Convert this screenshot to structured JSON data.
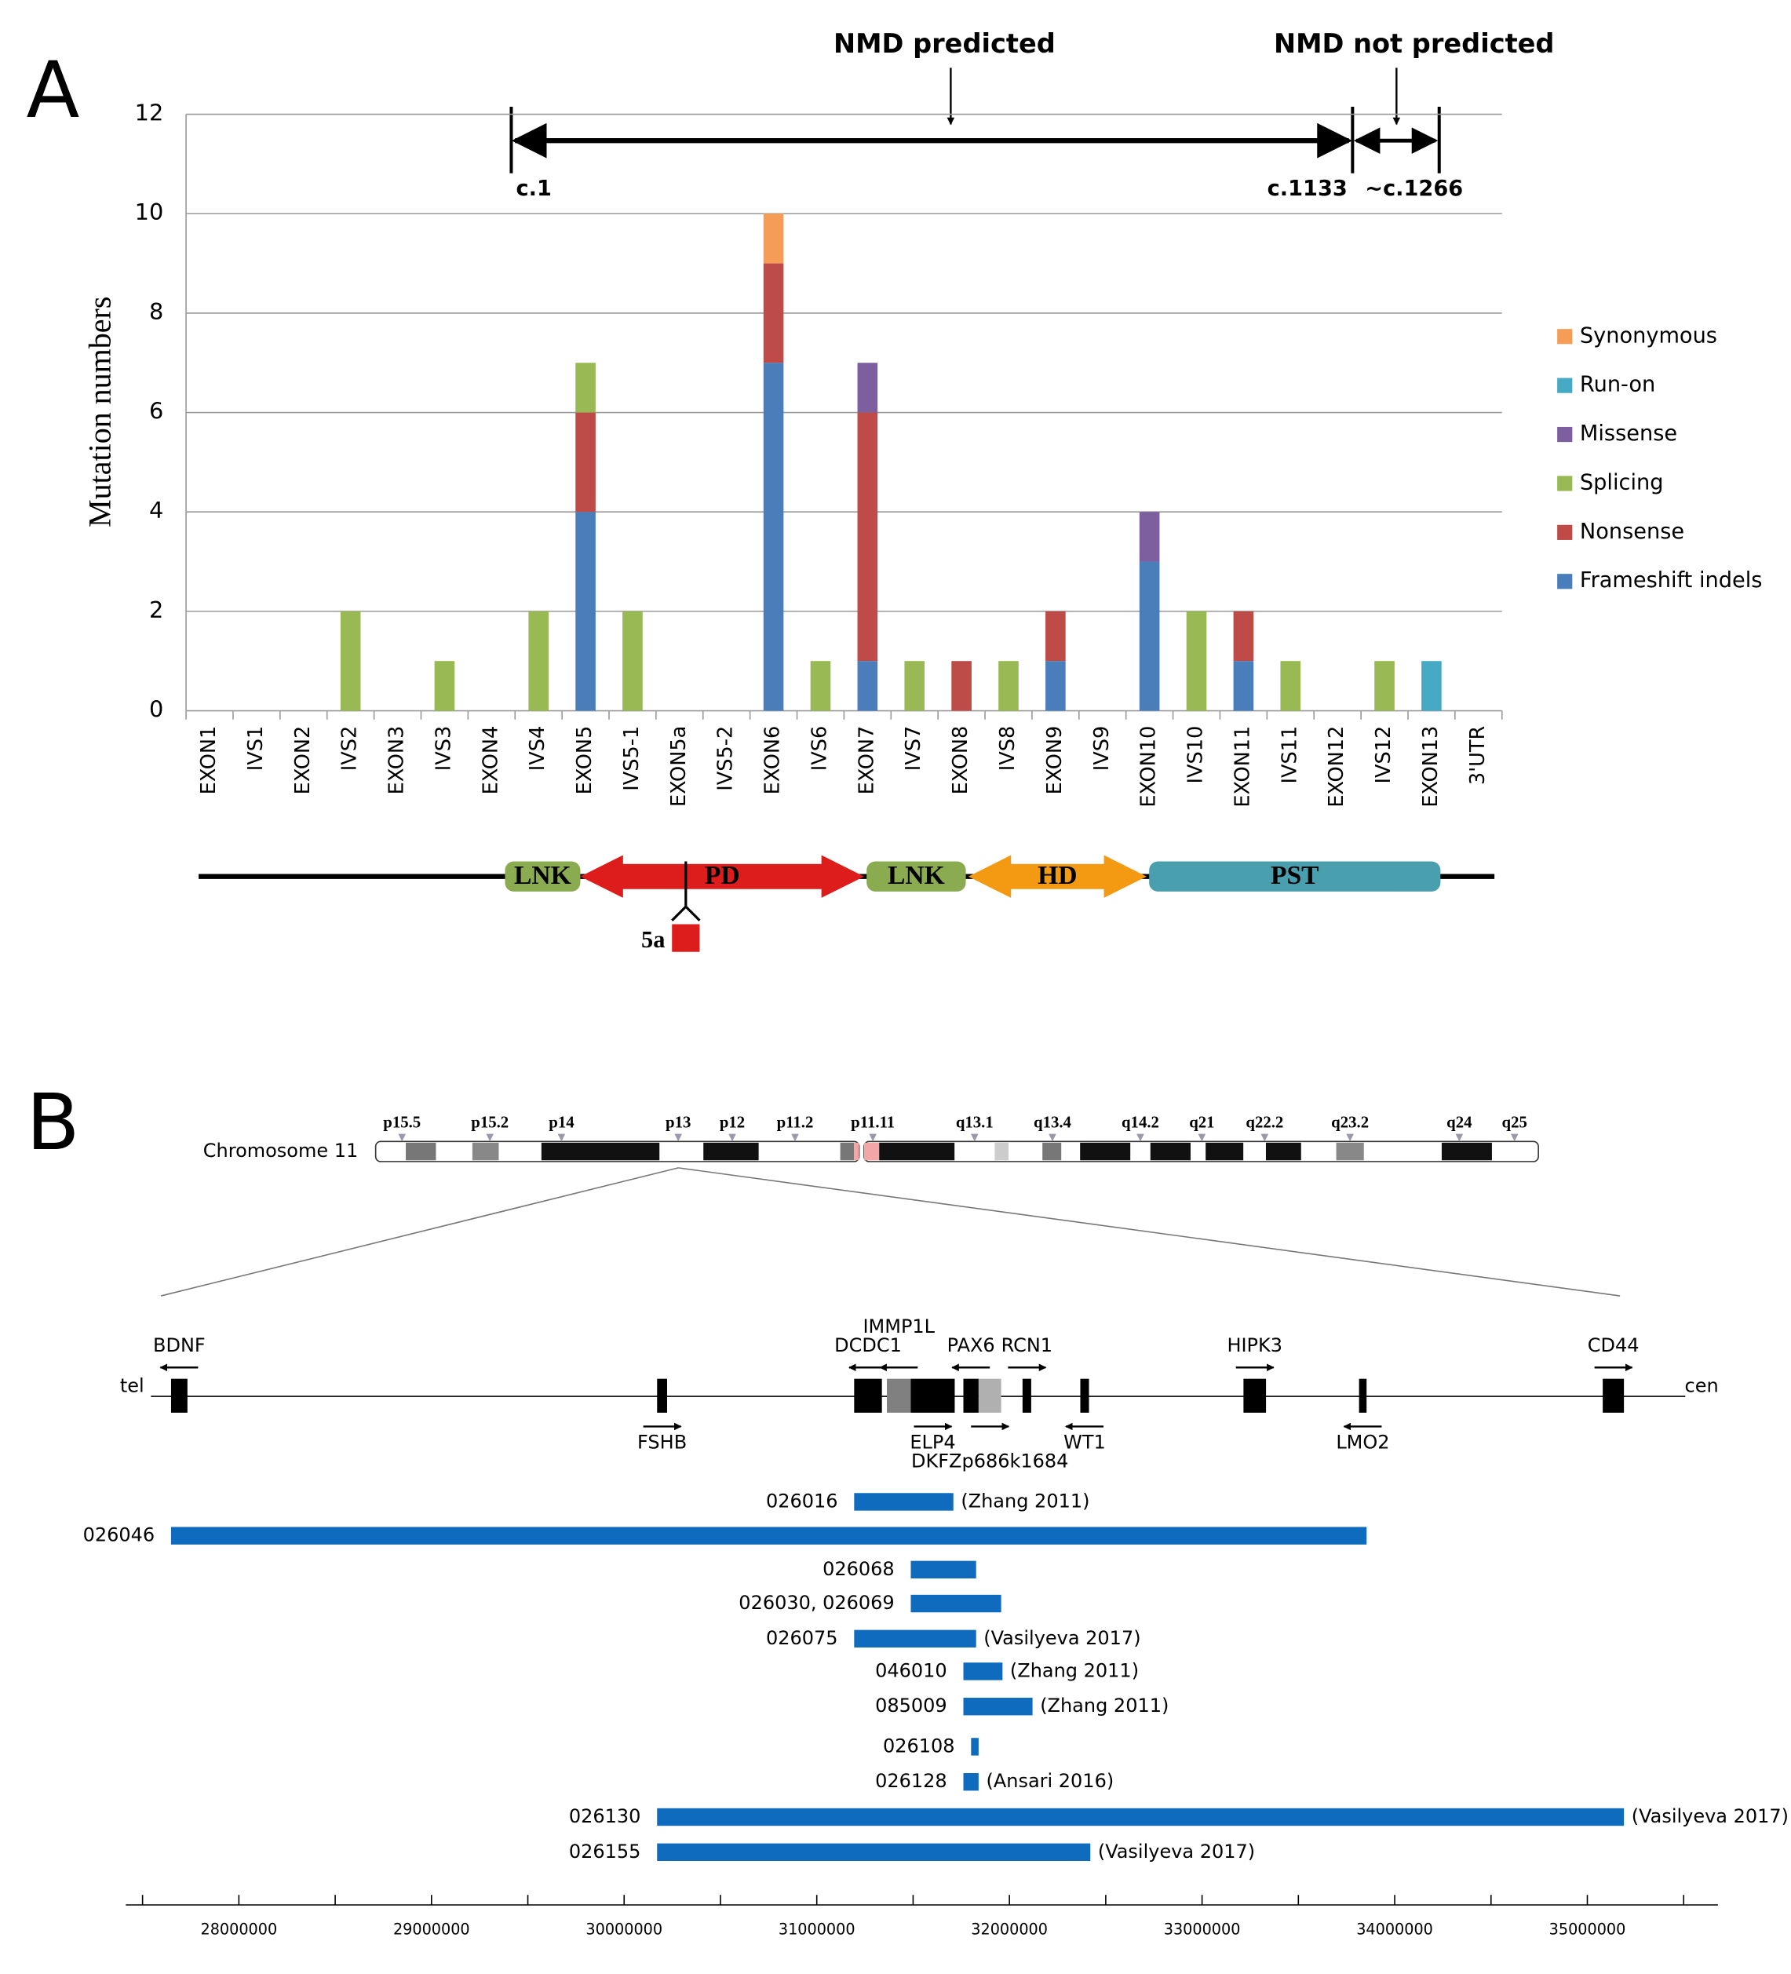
{
  "panel_labels": [
    "A",
    "B"
  ],
  "chart_data": [
    {
      "type": "bar",
      "stacked": true,
      "ylabel": "Mutation numbers",
      "categories": [
        "EXON1",
        "IVS1",
        "EXON2",
        "IVS2",
        "EXON3",
        "IVS3",
        "EXON4",
        "IVS4",
        "EXON5",
        "IVS5-1",
        "EXON5a",
        "IVS5-2",
        "EXON6",
        "IVS6",
        "EXON7",
        "IVS7",
        "EXON8",
        "IVS8",
        "EXON9",
        "IVS9",
        "EXON10",
        "IVS10",
        "EXON11",
        "IVS11",
        "EXON12",
        "IVS12",
        "EXON13",
        "3'UTR"
      ],
      "series": [
        {
          "name": "Frameshift indels",
          "color": "#4a7ebb",
          "values": [
            0,
            0,
            0,
            0,
            0,
            0,
            0,
            0,
            4,
            0,
            0,
            0,
            7,
            0,
            1,
            0,
            0,
            0,
            1,
            0,
            3,
            0,
            1,
            0,
            0,
            0,
            0,
            0
          ]
        },
        {
          "name": "Nonsense",
          "color": "#be4b48",
          "values": [
            0,
            0,
            0,
            0,
            0,
            0,
            0,
            0,
            2,
            0,
            0,
            0,
            2,
            0,
            5,
            0,
            1,
            0,
            1,
            0,
            0,
            0,
            1,
            0,
            0,
            0,
            0,
            0
          ]
        },
        {
          "name": "Splicing",
          "color": "#98b954",
          "values": [
            0,
            0,
            0,
            2,
            0,
            1,
            0,
            2,
            1,
            2,
            0,
            0,
            0,
            1,
            0,
            1,
            0,
            1,
            0,
            0,
            0,
            2,
            0,
            1,
            0,
            1,
            0,
            0
          ]
        },
        {
          "name": "Missense",
          "color": "#7d5fa0",
          "values": [
            0,
            0,
            0,
            0,
            0,
            0,
            0,
            0,
            0,
            0,
            0,
            0,
            0,
            0,
            1,
            0,
            0,
            0,
            0,
            0,
            1,
            0,
            0,
            0,
            0,
            0,
            0,
            0
          ]
        },
        {
          "name": "Run-on",
          "color": "#46aac5",
          "values": [
            0,
            0,
            0,
            0,
            0,
            0,
            0,
            0,
            0,
            0,
            0,
            0,
            0,
            0,
            0,
            0,
            0,
            0,
            0,
            0,
            0,
            0,
            0,
            0,
            0,
            0,
            1,
            0
          ]
        },
        {
          "name": "Synonymous",
          "color": "#f59d56",
          "values": [
            0,
            0,
            0,
            0,
            0,
            0,
            0,
            0,
            0,
            0,
            0,
            0,
            1,
            0,
            0,
            0,
            0,
            0,
            0,
            0,
            0,
            0,
            0,
            0,
            0,
            0,
            0,
            0
          ]
        }
      ],
      "ylim": [
        0,
        12
      ],
      "yticks": [
        0,
        2,
        4,
        6,
        8,
        10,
        12
      ],
      "grid": true,
      "legend": "right",
      "annotations": {
        "nmd_predicted": "NMD predicted",
        "nmd_not_predicted": "NMD not predicted",
        "c1": "c.1",
        "c1133": "c.1133",
        "c1266": "~c.1266"
      },
      "domains": [
        {
          "label": "LNK",
          "color": "#8aab4f",
          "shape": "rounded"
        },
        {
          "label": "PD",
          "color": "#dd1c1c",
          "shape": "double-arrow"
        },
        {
          "label": "LNK",
          "color": "#8aab4f",
          "shape": "rounded"
        },
        {
          "label": "HD",
          "color": "#f39a12",
          "shape": "double-arrow"
        },
        {
          "label": "PST",
          "color": "#4a9fae",
          "shape": "rounded"
        }
      ],
      "inset_label": "5a"
    },
    {
      "type": "range",
      "chromosome_label": "Chromosome 11",
      "bands": [
        "p15.5",
        "p15.2",
        "p14",
        "p13",
        "p12",
        "p11.2",
        "p11.11",
        "q13.1",
        "q13.4",
        "q14.2",
        "q21",
        "q22.2",
        "q23.2",
        "q24",
        "q25"
      ],
      "ends": [
        "tel",
        "cen"
      ],
      "genes": [
        {
          "name": "BDNF",
          "start": 27648000,
          "end": 27733000,
          "strand": "-",
          "side": "above",
          "color": "#000000"
        },
        {
          "name": "FSHB",
          "start": 30171000,
          "end": 30223000,
          "strand": "+",
          "side": "below",
          "color": "#000000"
        },
        {
          "name": "DCDC1",
          "start": 31194000,
          "end": 31338000,
          "strand": "-",
          "side": "above",
          "color": "#000000"
        },
        {
          "name": "IMMP1L",
          "start": 31364000,
          "end": 31488000,
          "strand": "-",
          "side": "above",
          "color": "#808080"
        },
        {
          "name": "ELP4",
          "start": 31488000,
          "end": 31716000,
          "strand": "+",
          "side": "below",
          "color": "#000000"
        },
        {
          "name": "PAX6",
          "start": 31761000,
          "end": 31840000,
          "strand": "-",
          "side": "above",
          "color": "#000000"
        },
        {
          "name": "DKFZp686k1684",
          "start": 31840000,
          "end": 31957000,
          "strand": "+",
          "side": "below",
          "color": "#b0b0b0"
        },
        {
          "name": "RCN1",
          "start": 32068000,
          "end": 32113000,
          "strand": "+",
          "side": "above",
          "color": "#000000"
        },
        {
          "name": "WT1",
          "start": 32368000,
          "end": 32413000,
          "strand": "-",
          "side": "below",
          "color": "#000000"
        },
        {
          "name": "HIPK3",
          "start": 33215000,
          "end": 33332000,
          "strand": "+",
          "side": "above",
          "color": "#000000"
        },
        {
          "name": "LMO2",
          "start": 33815000,
          "end": 33854000,
          "strand": "-",
          "side": "below",
          "color": "#000000"
        },
        {
          "name": "CD44",
          "start": 35080000,
          "end": 35190000,
          "strand": "+",
          "side": "above",
          "color": "#000000"
        }
      ],
      "color": "#0f6bbd",
      "bars": [
        {
          "label": "026016",
          "start": 31194000,
          "end": 31709000,
          "note": "(Zhang 2011)"
        },
        {
          "label": "026046",
          "start": 27648000,
          "end": 33854000
        },
        {
          "label": "026068",
          "start": 31488000,
          "end": 31827000
        },
        {
          "label": "026030, 026069",
          "start": 31488000,
          "end": 31957000
        },
        {
          "label": "026075",
          "start": 31194000,
          "end": 31827000,
          "note": "(Vasilyeva 2017)"
        },
        {
          "label": "046010",
          "start": 31761000,
          "end": 31964000,
          "note": "(Zhang 2011)"
        },
        {
          "label": "085009",
          "start": 31761000,
          "end": 32120000,
          "note": "(Zhang 2011)"
        },
        {
          "label": "026108",
          "start": 31801000,
          "end": 31840000
        },
        {
          "label": "026128",
          "start": 31761000,
          "end": 31840000,
          "note": "(Ansari 2016)"
        },
        {
          "label": "026130",
          "start": 30171000,
          "end": 35190000,
          "note": "(Vasilyeva 2017)"
        },
        {
          "label": "026155",
          "start": 30171000,
          "end": 32420000,
          "note": "(Vasilyeva 2017)"
        }
      ],
      "xlim": [
        27413000,
        35678000
      ],
      "xticks": [
        28000000,
        29000000,
        30000000,
        31000000,
        32000000,
        33000000,
        34000000,
        35000000
      ],
      "xticks_minor": [
        27500000,
        28500000,
        29500000,
        30500000,
        31500000,
        32500000,
        33500000,
        34500000,
        35500000
      ]
    }
  ]
}
